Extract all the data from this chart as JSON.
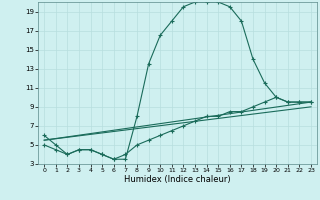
{
  "xlabel": "Humidex (Indice chaleur)",
  "bg_color": "#cff0f0",
  "line_color": "#1a6b5a",
  "grid_color": "#b8dede",
  "xlim": [
    -0.5,
    23.5
  ],
  "ylim": [
    3,
    20
  ],
  "xticks": [
    0,
    1,
    2,
    3,
    4,
    5,
    6,
    7,
    8,
    9,
    10,
    11,
    12,
    13,
    14,
    15,
    16,
    17,
    18,
    19,
    20,
    21,
    22,
    23
  ],
  "yticks": [
    3,
    5,
    7,
    9,
    11,
    13,
    15,
    17,
    19
  ],
  "line1_x": [
    0,
    1,
    2,
    3,
    4,
    5,
    6,
    7,
    8,
    9,
    10,
    11,
    12,
    13,
    14,
    15,
    16,
    17,
    18,
    19,
    20,
    21,
    22,
    23
  ],
  "line1_y": [
    6,
    5,
    4,
    4.5,
    4.5,
    4,
    3.5,
    3.5,
    8,
    13.5,
    16.5,
    18,
    19.5,
    20,
    20,
    20,
    19.5,
    18,
    14,
    11.5,
    10,
    9.5,
    9.5,
    9.5
  ],
  "line2_x": [
    0,
    1,
    2,
    3,
    4,
    5,
    6,
    7,
    8,
    9,
    10,
    11,
    12,
    13,
    14,
    15,
    16,
    17,
    18,
    19,
    20,
    21,
    22,
    23
  ],
  "line2_y": [
    5,
    4.5,
    4,
    4.5,
    4.5,
    4,
    3.5,
    4,
    5,
    5.5,
    6,
    6.5,
    7,
    7.5,
    8,
    8,
    8.5,
    8.5,
    9,
    9.5,
    10,
    9.5,
    9.5,
    9.5
  ],
  "line3_x": [
    0,
    23
  ],
  "line3_y": [
    5.5,
    9.5
  ],
  "line4_x": [
    0,
    23
  ],
  "line4_y": [
    5.5,
    9.0
  ]
}
